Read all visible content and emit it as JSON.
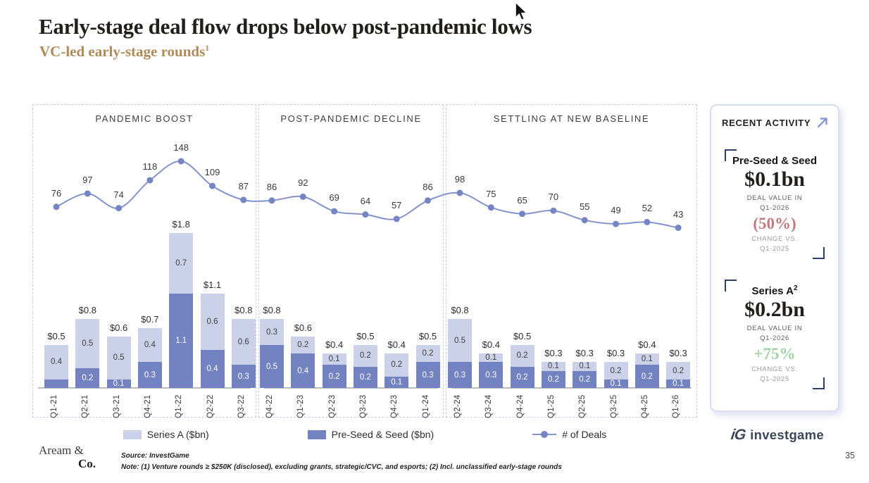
{
  "header": {
    "title": "Early-stage deal flow drops below post-pandemic lows",
    "subtitle": "VC-led early-stage rounds",
    "subtitle_sup": "1"
  },
  "chart_data": {
    "type": "bar+line",
    "subtype": "stacked bars with deal-count line",
    "unit": "$bn",
    "categories": [
      "Q1-21",
      "Q2-21",
      "Q3-21",
      "Q4-21",
      "Q1-22",
      "Q2-22",
      "Q3-22",
      "Q4-22",
      "Q1-23",
      "Q2-23",
      "Q3-23",
      "Q4-23",
      "Q1-24",
      "Q2-24",
      "Q3-24",
      "Q4-24",
      "Q1-25",
      "Q2-25",
      "Q3-25",
      "Q4-25",
      "Q1-26"
    ],
    "sections": [
      {
        "label": "PANDEMIC BOOST",
        "start": 0,
        "count": 7
      },
      {
        "label": "POST-PANDEMIC DECLINE",
        "start": 7,
        "count": 6
      },
      {
        "label": "SETTLING AT NEW BASELINE",
        "start": 13,
        "count": 8
      }
    ],
    "series": [
      {
        "name": "Series A ($bn)",
        "type": "bar",
        "stack": "top",
        "color": "#cbd1e9",
        "values": [
          0.4,
          0.5,
          0.5,
          0.4,
          0.7,
          0.6,
          0.6,
          0.3,
          0.2,
          0.1,
          0.2,
          0.2,
          0.2,
          0.5,
          0.1,
          0.2,
          0.1,
          0.1,
          0.2,
          0.1,
          0.2
        ],
        "labels": [
          "0.4",
          "0.5",
          "0.5",
          "0.4",
          "0.7",
          "0.6",
          "0.6",
          "0.3",
          "0.2",
          "0.1",
          "0.2",
          "0.2",
          "0.2",
          "0.5",
          "0.1",
          "0.2",
          "0.1",
          "0.1",
          "0.2",
          "0.1",
          "0.2"
        ]
      },
      {
        "name": "Pre-Seed & Seed ($bn)",
        "type": "bar",
        "stack": "bottom",
        "color": "#7383c1",
        "values": [
          0.1,
          0.2,
          0.1,
          0.3,
          1.1,
          0.4,
          0.3,
          0.5,
          0.4,
          0.2,
          0.2,
          0.1,
          0.3,
          0.3,
          0.3,
          0.2,
          0.2,
          0.2,
          0.1,
          0.2,
          0.1
        ],
        "labels": [
          "",
          "0.2",
          "0.1",
          "0.3",
          "1.1",
          "0.4",
          "0.3",
          "0.5",
          "0.4",
          "0.2",
          "0.2",
          "0.1",
          "0.3",
          "0.3",
          "0.3",
          "0.2",
          "0.2",
          "0.2",
          "0.1",
          "0.2",
          "0.1"
        ]
      },
      {
        "name": "# of Deals",
        "type": "line",
        "color": "#8392cd",
        "values": [
          76,
          97,
          74,
          118,
          148,
          109,
          87,
          86,
          92,
          69,
          64,
          57,
          86,
          98,
          75,
          65,
          70,
          55,
          49,
          52,
          43
        ]
      }
    ],
    "totals": [
      "$0.5",
      "$0.8",
      "$0.6",
      "$0.7",
      "$1.8",
      "$1.1",
      "$0.8",
      "$0.8",
      "$0.6",
      "$0.4",
      "$0.5",
      "$0.4",
      "$0.5",
      "$0.8",
      "$0.4",
      "$0.5",
      "$0.3",
      "$0.3",
      "$0.3",
      "$0.4",
      "$0.3"
    ]
  },
  "recent_activity": {
    "title": "RECENT ACTIVITY",
    "cards": [
      {
        "name": "Pre-Seed & Seed",
        "name_sup": "",
        "value": "$0.1bn",
        "sub_line1": "DEAL VALUE IN",
        "sub_line2": "Q1-2026",
        "change": "(50%)",
        "change_color": "#c4797d",
        "vs_line1": "CHANGE VS.",
        "vs_line2": "Q1-2025"
      },
      {
        "name": "Series A",
        "name_sup": "2",
        "value": "$0.2bn",
        "sub_line1": "DEAL VALUE IN",
        "sub_line2": "Q1-2026",
        "change": "+75%",
        "change_color": "#a0d2a6",
        "vs_line1": "CHANGE VS.",
        "vs_line2": "Q1-2025"
      }
    ]
  },
  "footer": {
    "logo_line1": "Aream &",
    "logo_line2": "Co.",
    "source": "Source: InvestGame",
    "note": "Note: (1) Venture rounds ≥ $250K (disclosed), excluding grants, strategic/CVC, and esports; (2) Incl. unclassified early-stage rounds",
    "brand_mark": "iG",
    "brand": "investgame",
    "page_number": "35"
  }
}
